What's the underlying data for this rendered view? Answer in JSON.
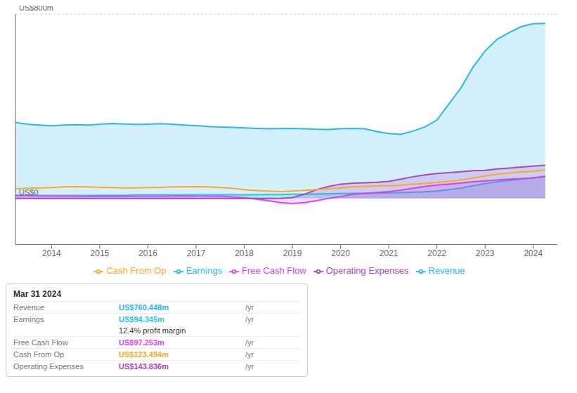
{
  "chart_data": {
    "type": "area",
    "x": [
      2013.25,
      2013.5,
      2013.75,
      2014.0,
      2014.25,
      2014.5,
      2014.75,
      2015.0,
      2015.25,
      2015.5,
      2015.75,
      2016.0,
      2016.25,
      2016.5,
      2016.75,
      2017.0,
      2017.25,
      2017.5,
      2017.75,
      2018.0,
      2018.25,
      2018.5,
      2018.75,
      2019.0,
      2019.25,
      2019.5,
      2019.75,
      2020.0,
      2020.25,
      2020.5,
      2020.75,
      2021.0,
      2021.25,
      2021.5,
      2021.75,
      2022.0,
      2022.25,
      2022.5,
      2022.75,
      2023.0,
      2023.25,
      2023.5,
      2023.75,
      2024.0,
      2024.25
    ],
    "series": [
      {
        "name": "Revenue",
        "type": "area",
        "color": "#29b6f6",
        "values": [
          330,
          322,
          318,
          315,
          318,
          320,
          318,
          322,
          325,
          323,
          321,
          322,
          324,
          322,
          318,
          316,
          312,
          310,
          308,
          306,
          304,
          302,
          303,
          304,
          302,
          300,
          299,
          302,
          304,
          302,
          290,
          282,
          278,
          292,
          310,
          340,
          410,
          480,
          570,
          640,
          690,
          720,
          745,
          758,
          760
        ]
      },
      {
        "name": "Earnings",
        "type": "area",
        "color": "#26c6da",
        "values": [
          14,
          14,
          13,
          13,
          13,
          13,
          13,
          14,
          14,
          14,
          15,
          15,
          15,
          15,
          16,
          16,
          16,
          16,
          16,
          16,
          16,
          17,
          17,
          18,
          18,
          19,
          20,
          21,
          22,
          22,
          23,
          24,
          25,
          27,
          29,
          32,
          38,
          45,
          55,
          65,
          72,
          78,
          84,
          90,
          94
        ]
      },
      {
        "name": "Free Cash Flow",
        "type": "area",
        "color": "#e040fb",
        "values": [
          12,
          12,
          11,
          11,
          10,
          10,
          9,
          9,
          9,
          9,
          10,
          10,
          10,
          11,
          11,
          11,
          10,
          10,
          7,
          3,
          -3,
          -10,
          -18,
          -22,
          -18,
          -10,
          0,
          8,
          18,
          22,
          26,
          30,
          36,
          44,
          52,
          58,
          62,
          67,
          72,
          76,
          80,
          84,
          86,
          88,
          97
        ]
      },
      {
        "name": "Cash From Op",
        "type": "line",
        "color": "#ffa726",
        "values": [
          42,
          44,
          46,
          47,
          50,
          51,
          50,
          48,
          47,
          46,
          46,
          47,
          48,
          50,
          50,
          51,
          50,
          47,
          44,
          38,
          34,
          32,
          30,
          32,
          35,
          38,
          42,
          46,
          50,
          52,
          54,
          55,
          57,
          62,
          65,
          69,
          74,
          80,
          88,
          98,
          105,
          110,
          115,
          118,
          123
        ]
      },
      {
        "name": "Operating Expenses",
        "type": "area",
        "color": "#ab47bc",
        "values": [
          0,
          0,
          0,
          0,
          0,
          0,
          0,
          0,
          0,
          0,
          0,
          0,
          0,
          0,
          0,
          0,
          0,
          0,
          0,
          0,
          0,
          0,
          0,
          4,
          18,
          38,
          52,
          62,
          66,
          68,
          70,
          74,
          84,
          94,
          102,
          108,
          112,
          116,
          120,
          122,
          128,
          132,
          136,
          140,
          144
        ]
      }
    ],
    "xlim": [
      2013.25,
      2024.5
    ],
    "xticks": [
      2014,
      2015,
      2016,
      2017,
      2018,
      2019,
      2020,
      2021,
      2022,
      2023,
      2024
    ],
    "ylim": [
      -200,
      800
    ],
    "yticks": [
      -200,
      0,
      200,
      400,
      600,
      800
    ],
    "grid": true,
    "tick_labels": "x",
    "annotations": [
      {
        "text": "US$800m",
        "y": 800
      },
      {
        "text": "US$0",
        "y": 0
      }
    ],
    "info_box": {
      "title": "Mar 31 2024",
      "rows": [
        {
          "label": "Revenue",
          "value": "US$760.448m",
          "suffix": "/yr",
          "color": "#29b6f6"
        },
        {
          "label": "Earnings",
          "value": "US$94.345m",
          "suffix": "/yr",
          "color": "#26c6da"
        },
        {
          "value": "12.4% profit margin"
        },
        {
          "label": "Free Cash Flow",
          "value": "US$97.253m",
          "suffix": "/yr",
          "color": "#e040fb"
        },
        {
          "label": "Cash From Op",
          "value": "US$123.494m",
          "suffix": "/yr",
          "color": "#ffa726"
        },
        {
          "label": "Operating Expenses",
          "value": "US$143.836m",
          "suffix": "/yr",
          "color": "#ab47bc"
        }
      ]
    }
  }
}
